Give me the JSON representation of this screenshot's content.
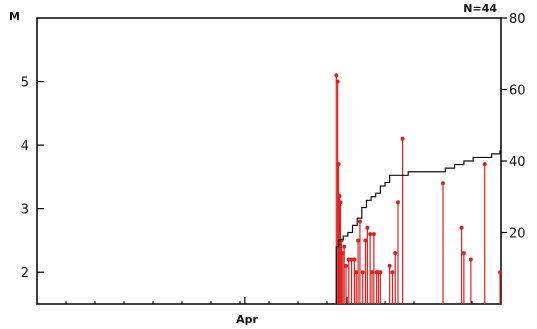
{
  "chart_data": {
    "type": "line",
    "title": "",
    "annotation": "N=44",
    "ylabel_left": "M",
    "xlabel": "Apr",
    "ylim_left": [
      1.5,
      6.0
    ],
    "ylim_right": [
      0,
      80
    ],
    "yticks_left": [
      2,
      3,
      4,
      5
    ],
    "yticks_right": [
      20,
      40,
      60,
      80
    ],
    "grid": false,
    "series": [
      {
        "style": "stems",
        "color": "#e02020",
        "x": [
          0.645,
          0.648,
          0.65,
          0.652,
          0.654,
          0.656,
          0.659,
          0.662,
          0.666,
          0.672,
          0.678,
          0.684,
          0.688,
          0.692,
          0.696,
          0.702,
          0.708,
          0.712,
          0.718,
          0.722,
          0.726,
          0.732,
          0.736,
          0.74,
          0.76,
          0.766,
          0.772,
          0.778,
          0.788,
          0.875,
          0.915,
          0.92,
          0.935,
          0.965,
          0.998
        ],
        "values": [
          5.1,
          5.0,
          3.7,
          3.2,
          3.1,
          2.5,
          2.3,
          2.4,
          2.1,
          2.2,
          2.2,
          2.2,
          2.0,
          2.5,
          2.8,
          2.0,
          2.5,
          2.7,
          2.6,
          2.0,
          2.6,
          2.0,
          2.0,
          2.0,
          2.1,
          2.0,
          2.3,
          3.1,
          4.1,
          3.4,
          2.7,
          2.3,
          2.2,
          3.7,
          2.0
        ]
      },
      {
        "style": "step",
        "color": "#111111",
        "x": [
          0.645,
          0.65,
          0.66,
          0.67,
          0.68,
          0.69,
          0.7,
          0.71,
          0.72,
          0.73,
          0.74,
          0.75,
          0.76,
          0.78,
          0.8,
          0.85,
          0.88,
          0.9,
          0.92,
          0.94,
          0.96,
          0.98,
          0.998
        ],
        "values": [
          16,
          18,
          19,
          20,
          22,
          24,
          27,
          29,
          30,
          31,
          33,
          34,
          36,
          36,
          37,
          37,
          38,
          39,
          40,
          41,
          41,
          42,
          43
        ]
      }
    ]
  }
}
